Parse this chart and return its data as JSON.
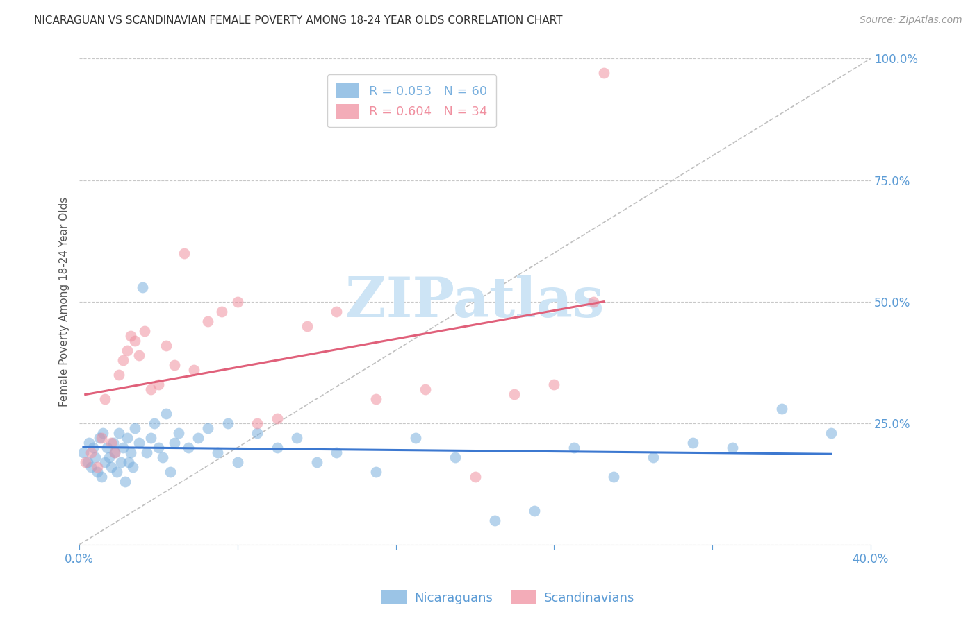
{
  "title": "NICARAGUAN VS SCANDINAVIAN FEMALE POVERTY AMONG 18-24 YEAR OLDS CORRELATION CHART",
  "source": "Source: ZipAtlas.com",
  "ylabel": "Female Poverty Among 18-24 Year Olds",
  "xlim": [
    0.0,
    0.4
  ],
  "ylim": [
    0.0,
    1.0
  ],
  "yticks": [
    0.0,
    0.25,
    0.5,
    0.75,
    1.0
  ],
  "ytick_labels": [
    "",
    "25.0%",
    "50.0%",
    "75.0%",
    "100.0%"
  ],
  "xticks": [
    0.0,
    0.08,
    0.16,
    0.24,
    0.32,
    0.4
  ],
  "xtick_labels": [
    "0.0%",
    "",
    "",
    "",
    "",
    "40.0%"
  ],
  "tick_color": "#5b9bd5",
  "grid_color": "#c8c8c8",
  "watermark_text": "ZIPatlas",
  "watermark_color": "#cde4f5",
  "color_nicaraguan": "#7ab0de",
  "color_scandinavian": "#f090a0",
  "scatter_alpha": 0.55,
  "scatter_size": 130,
  "diag_line_color": "#c0c0c0",
  "reg_line_nicaraguan_color": "#3c78d0",
  "reg_line_scandinavian_color": "#e0607a",
  "nicaraguan_x": [
    0.002,
    0.004,
    0.005,
    0.006,
    0.007,
    0.008,
    0.009,
    0.01,
    0.011,
    0.012,
    0.013,
    0.014,
    0.015,
    0.016,
    0.017,
    0.018,
    0.019,
    0.02,
    0.021,
    0.022,
    0.023,
    0.024,
    0.025,
    0.026,
    0.027,
    0.028,
    0.03,
    0.032,
    0.034,
    0.036,
    0.038,
    0.04,
    0.042,
    0.044,
    0.046,
    0.048,
    0.05,
    0.055,
    0.06,
    0.065,
    0.07,
    0.075,
    0.08,
    0.09,
    0.1,
    0.11,
    0.12,
    0.13,
    0.15,
    0.17,
    0.19,
    0.21,
    0.23,
    0.25,
    0.27,
    0.29,
    0.31,
    0.33,
    0.355,
    0.38
  ],
  "nicaraguan_y": [
    0.19,
    0.17,
    0.21,
    0.16,
    0.2,
    0.18,
    0.15,
    0.22,
    0.14,
    0.23,
    0.17,
    0.2,
    0.18,
    0.16,
    0.21,
    0.19,
    0.15,
    0.23,
    0.17,
    0.2,
    0.13,
    0.22,
    0.17,
    0.19,
    0.16,
    0.24,
    0.21,
    0.53,
    0.19,
    0.22,
    0.25,
    0.2,
    0.18,
    0.27,
    0.15,
    0.21,
    0.23,
    0.2,
    0.22,
    0.24,
    0.19,
    0.25,
    0.17,
    0.23,
    0.2,
    0.22,
    0.17,
    0.19,
    0.15,
    0.22,
    0.18,
    0.05,
    0.07,
    0.2,
    0.14,
    0.18,
    0.21,
    0.2,
    0.28,
    0.23
  ],
  "scandinavian_x": [
    0.003,
    0.006,
    0.009,
    0.011,
    0.013,
    0.016,
    0.018,
    0.02,
    0.022,
    0.024,
    0.026,
    0.028,
    0.03,
    0.033,
    0.036,
    0.04,
    0.044,
    0.048,
    0.053,
    0.058,
    0.065,
    0.072,
    0.08,
    0.09,
    0.1,
    0.115,
    0.13,
    0.15,
    0.175,
    0.2,
    0.22,
    0.24,
    0.26,
    0.265
  ],
  "scandinavian_y": [
    0.17,
    0.19,
    0.16,
    0.22,
    0.3,
    0.21,
    0.19,
    0.35,
    0.38,
    0.4,
    0.43,
    0.42,
    0.39,
    0.44,
    0.32,
    0.33,
    0.41,
    0.37,
    0.6,
    0.36,
    0.46,
    0.48,
    0.5,
    0.25,
    0.26,
    0.45,
    0.48,
    0.3,
    0.32,
    0.14,
    0.31,
    0.33,
    0.5,
    0.97
  ]
}
